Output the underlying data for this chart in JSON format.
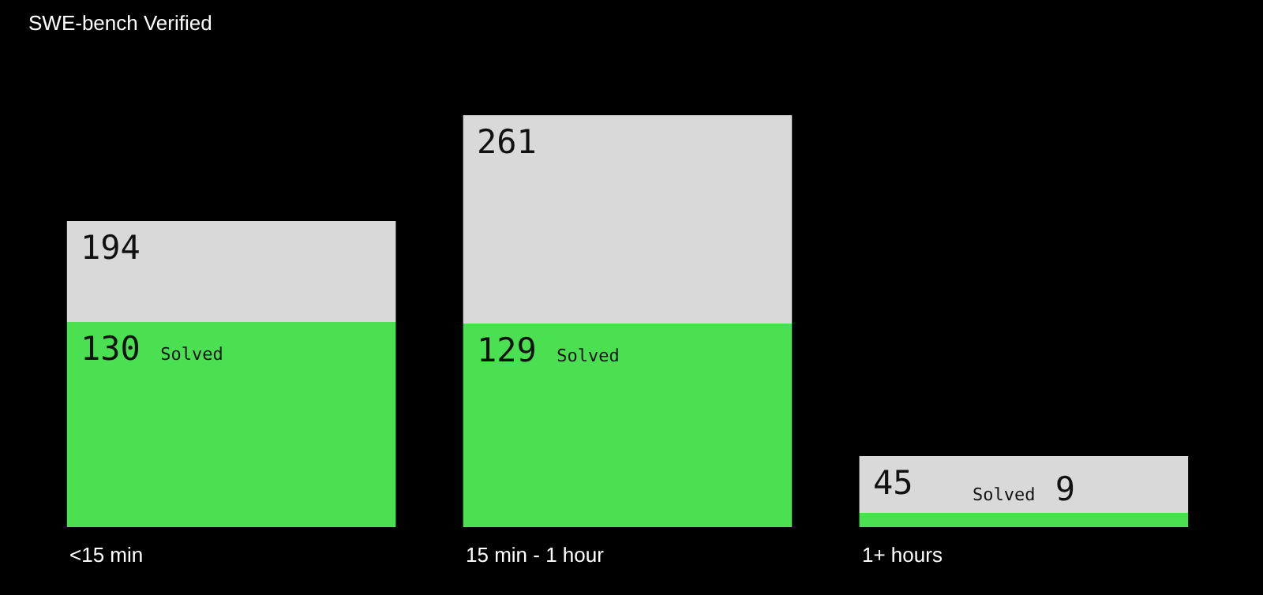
{
  "chart_data": {
    "type": "bar",
    "title": "SWE-bench Verified",
    "stacked": true,
    "legend": false,
    "grid": false,
    "categories": [
      "<15 min",
      "15 min - 1 hour",
      "1+ hours"
    ],
    "series": [
      {
        "name": "Solved",
        "color": "#4ae052",
        "values": [
          130,
          129,
          9
        ],
        "value_labels": [
          "130",
          "129",
          "9"
        ]
      },
      {
        "color": "#d9d9d9",
        "values": [
          64,
          132,
          36
        ]
      }
    ],
    "totals": [
      "194",
      "261",
      "45"
    ]
  }
}
